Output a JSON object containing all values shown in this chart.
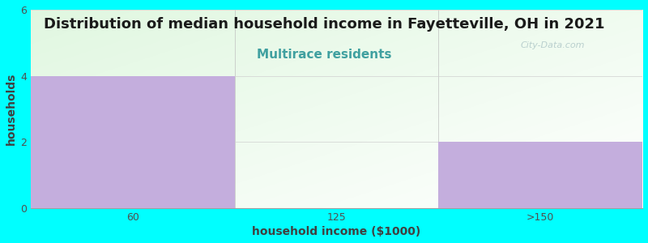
{
  "title": "Distribution of median household income in Fayetteville, OH in 2021",
  "subtitle": "Multirace residents",
  "subtitle_color": "#40A0A0",
  "xlabel": "household income ($1000)",
  "ylabel": "households",
  "categories": [
    "60",
    "125",
    ">150"
  ],
  "values": [
    4,
    0,
    2
  ],
  "bar_color": "#C4AEDD",
  "ylim": [
    0,
    6
  ],
  "yticks": [
    0,
    2,
    4,
    6
  ],
  "background_color": "#00FFFF",
  "title_fontsize": 13,
  "subtitle_fontsize": 11,
  "axis_label_fontsize": 10,
  "tick_fontsize": 9,
  "watermark_text": "City-Data.com",
  "watermark_color": "#B0C8C8"
}
